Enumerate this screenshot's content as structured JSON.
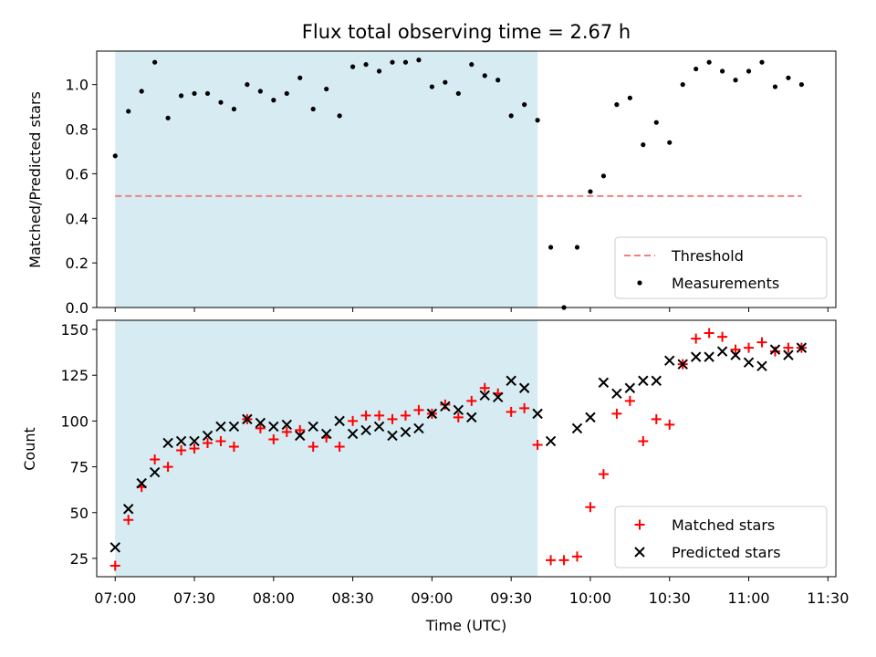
{
  "title": "Flux total observing time = 2.67 h",
  "chart_data": [
    {
      "type": "scatter",
      "panel": "top",
      "ylabel": "Matched/Predicted stars",
      "xlabel": "",
      "xlim": [
        "06:53",
        "11:33"
      ],
      "ylim": [
        0,
        1.15
      ],
      "yticks": [
        "0.0",
        "0.2",
        "0.4",
        "0.6",
        "0.8",
        "1.0"
      ],
      "xticks": [
        "07:00",
        "07:30",
        "08:00",
        "08:30",
        "09:00",
        "09:30",
        "10:00",
        "10:30",
        "11:00",
        "11:30"
      ],
      "grid": false,
      "legend_position": "lower right",
      "shaded_interval": {
        "start": "07:00",
        "end": "09:40",
        "color": "#add8e6"
      },
      "series": [
        {
          "name": "Threshold",
          "kind": "dashed-line",
          "color": "#f08080",
          "x": [
            "07:00",
            "11:20"
          ],
          "y": [
            0.5,
            0.5
          ]
        },
        {
          "name": "Measurements",
          "kind": "dots",
          "color": "#000000",
          "points": [
            [
              "07:00",
              0.68
            ],
            [
              "07:05",
              0.88
            ],
            [
              "07:10",
              0.97
            ],
            [
              "07:15",
              1.1
            ],
            [
              "07:20",
              0.85
            ],
            [
              "07:25",
              0.95
            ],
            [
              "07:30",
              0.96
            ],
            [
              "07:35",
              0.96
            ],
            [
              "07:40",
              0.92
            ],
            [
              "07:45",
              0.89
            ],
            [
              "07:50",
              1.0
            ],
            [
              "07:55",
              0.97
            ],
            [
              "08:00",
              0.93
            ],
            [
              "08:05",
              0.96
            ],
            [
              "08:10",
              1.03
            ],
            [
              "08:15",
              0.89
            ],
            [
              "08:20",
              0.98
            ],
            [
              "08:25",
              0.86
            ],
            [
              "08:30",
              1.08
            ],
            [
              "08:35",
              1.09
            ],
            [
              "08:40",
              1.06
            ],
            [
              "08:45",
              1.1
            ],
            [
              "08:50",
              1.1
            ],
            [
              "08:55",
              1.11
            ],
            [
              "09:00",
              0.99
            ],
            [
              "09:05",
              1.01
            ],
            [
              "09:10",
              0.96
            ],
            [
              "09:15",
              1.09
            ],
            [
              "09:20",
              1.04
            ],
            [
              "09:25",
              1.02
            ],
            [
              "09:30",
              0.86
            ],
            [
              "09:35",
              0.91
            ],
            [
              "09:40",
              0.84
            ],
            [
              "09:45",
              0.27
            ],
            [
              "09:50",
              0.0
            ],
            [
              "09:55",
              0.27
            ],
            [
              "10:00",
              0.52
            ],
            [
              "10:05",
              0.59
            ],
            [
              "10:10",
              0.91
            ],
            [
              "10:15",
              0.94
            ],
            [
              "10:20",
              0.73
            ],
            [
              "10:25",
              0.83
            ],
            [
              "10:30",
              0.74
            ],
            [
              "10:35",
              1.0
            ],
            [
              "10:40",
              1.07
            ],
            [
              "10:45",
              1.1
            ],
            [
              "10:50",
              1.06
            ],
            [
              "10:55",
              1.02
            ],
            [
              "11:00",
              1.06
            ],
            [
              "11:05",
              1.1
            ],
            [
              "11:10",
              0.99
            ],
            [
              "11:15",
              1.03
            ],
            [
              "11:20",
              1.0
            ]
          ]
        }
      ]
    },
    {
      "type": "scatter",
      "panel": "bottom",
      "ylabel": "Count",
      "xlabel": "Time (UTC)",
      "xlim": [
        "06:53",
        "11:33"
      ],
      "ylim": [
        15,
        155
      ],
      "yticks": [
        "25",
        "50",
        "75",
        "100",
        "125",
        "150"
      ],
      "xticks": [
        "07:00",
        "07:30",
        "08:00",
        "08:30",
        "09:00",
        "09:30",
        "10:00",
        "10:30",
        "11:00",
        "11:30"
      ],
      "grid": false,
      "legend_position": "lower right",
      "shaded_interval": {
        "start": "07:00",
        "end": "09:40",
        "color": "#add8e6"
      },
      "series": [
        {
          "name": "Matched stars",
          "kind": "plus",
          "color": "#ff0000",
          "points": [
            [
              "07:00",
              21
            ],
            [
              "07:05",
              46
            ],
            [
              "07:10",
              64
            ],
            [
              "07:15",
              79
            ],
            [
              "07:20",
              75
            ],
            [
              "07:25",
              84
            ],
            [
              "07:30",
              85
            ],
            [
              "07:35",
              88
            ],
            [
              "07:40",
              89
            ],
            [
              "07:45",
              86
            ],
            [
              "07:50",
              101
            ],
            [
              "07:55",
              96
            ],
            [
              "08:00",
              90
            ],
            [
              "08:05",
              94
            ],
            [
              "08:10",
              95
            ],
            [
              "08:15",
              86
            ],
            [
              "08:20",
              91
            ],
            [
              "08:25",
              86
            ],
            [
              "08:30",
              100
            ],
            [
              "08:35",
              103
            ],
            [
              "08:40",
              103
            ],
            [
              "08:45",
              101
            ],
            [
              "08:50",
              103
            ],
            [
              "08:55",
              106
            ],
            [
              "09:00",
              104
            ],
            [
              "09:05",
              109
            ],
            [
              "09:10",
              102
            ],
            [
              "09:15",
              111
            ],
            [
              "09:20",
              118
            ],
            [
              "09:25",
              115
            ],
            [
              "09:30",
              105
            ],
            [
              "09:35",
              107
            ],
            [
              "09:40",
              87
            ],
            [
              "09:45",
              24
            ],
            [
              "09:50",
              24
            ],
            [
              "09:55",
              26
            ],
            [
              "10:00",
              53
            ],
            [
              "10:05",
              71
            ],
            [
              "10:10",
              104
            ],
            [
              "10:15",
              111
            ],
            [
              "10:20",
              89
            ],
            [
              "10:25",
              101
            ],
            [
              "10:30",
              98
            ],
            [
              "10:35",
              131
            ],
            [
              "10:40",
              145
            ],
            [
              "10:45",
              148
            ],
            [
              "10:50",
              146
            ],
            [
              "10:55",
              139
            ],
            [
              "11:00",
              140
            ],
            [
              "11:05",
              143
            ],
            [
              "11:10",
              138
            ],
            [
              "11:15",
              140
            ],
            [
              "11:20",
              140
            ]
          ]
        },
        {
          "name": "Predicted stars",
          "kind": "x",
          "color": "#000000",
          "points": [
            [
              "07:00",
              31
            ],
            [
              "07:05",
              52
            ],
            [
              "07:10",
              66
            ],
            [
              "07:15",
              72
            ],
            [
              "07:20",
              88
            ],
            [
              "07:25",
              89
            ],
            [
              "07:30",
              89
            ],
            [
              "07:35",
              92
            ],
            [
              "07:40",
              97
            ],
            [
              "07:45",
              97
            ],
            [
              "07:50",
              101
            ],
            [
              "07:55",
              99
            ],
            [
              "08:00",
              97
            ],
            [
              "08:05",
              98
            ],
            [
              "08:10",
              92
            ],
            [
              "08:15",
              97
            ],
            [
              "08:20",
              93
            ],
            [
              "08:25",
              100
            ],
            [
              "08:30",
              93
            ],
            [
              "08:35",
              95
            ],
            [
              "08:40",
              97
            ],
            [
              "08:45",
              92
            ],
            [
              "08:50",
              94
            ],
            [
              "08:55",
              96
            ],
            [
              "09:00",
              104
            ],
            [
              "09:05",
              108
            ],
            [
              "09:10",
              106
            ],
            [
              "09:15",
              102
            ],
            [
              "09:20",
              114
            ],
            [
              "09:25",
              113
            ],
            [
              "09:30",
              122
            ],
            [
              "09:35",
              118
            ],
            [
              "09:40",
              104
            ],
            [
              "09:45",
              89
            ],
            [
              "09:55",
              96
            ],
            [
              "10:00",
              102
            ],
            [
              "10:05",
              121
            ],
            [
              "10:10",
              115
            ],
            [
              "10:15",
              118
            ],
            [
              "10:20",
              122
            ],
            [
              "10:25",
              122
            ],
            [
              "10:30",
              133
            ],
            [
              "10:35",
              131
            ],
            [
              "10:40",
              135
            ],
            [
              "10:45",
              135
            ],
            [
              "10:50",
              138
            ],
            [
              "10:55",
              136
            ],
            [
              "11:00",
              132
            ],
            [
              "11:05",
              130
            ],
            [
              "11:10",
              139
            ],
            [
              "11:15",
              136
            ],
            [
              "11:20",
              140
            ]
          ]
        }
      ]
    }
  ]
}
